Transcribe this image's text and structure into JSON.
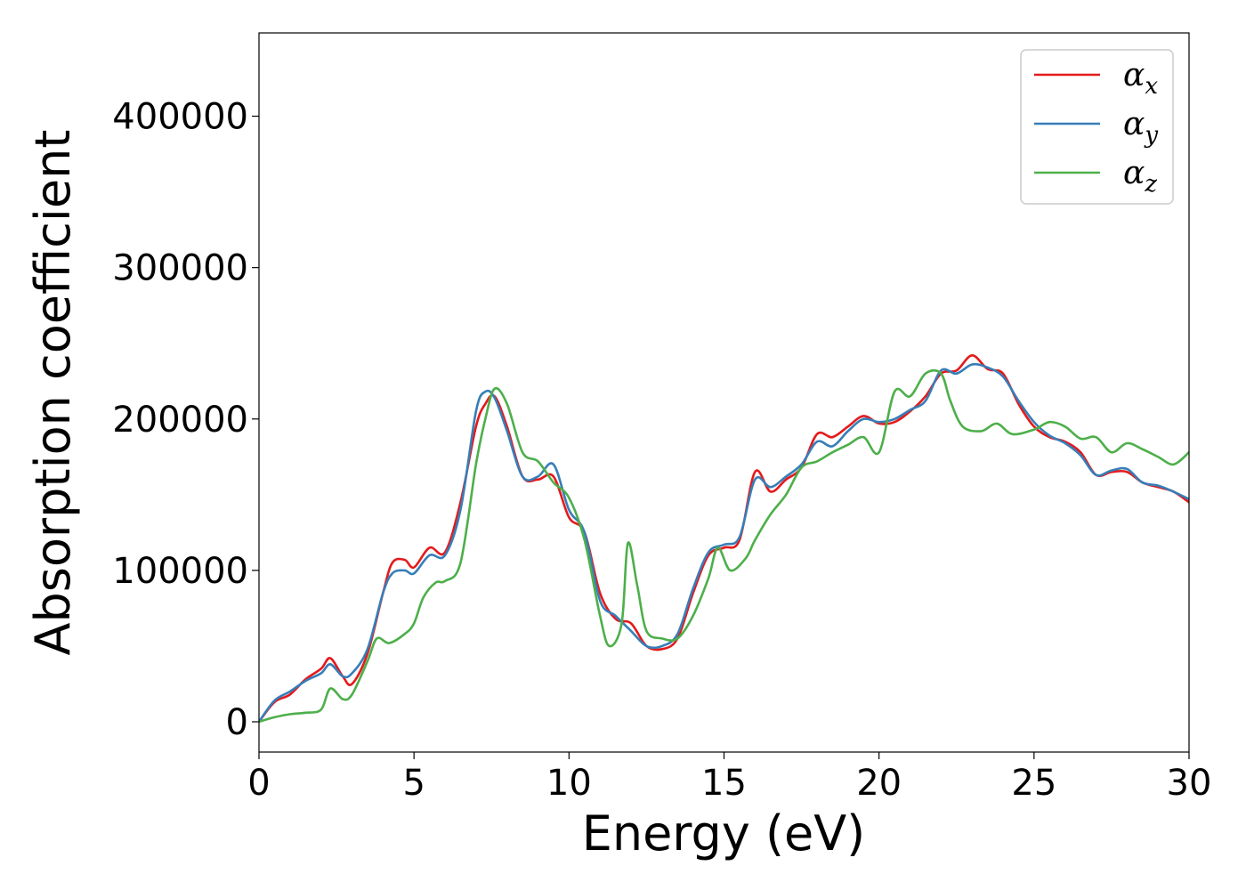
{
  "chart_data": {
    "type": "line",
    "title": "",
    "xlabel": "Energy (eV)",
    "ylabel": "Absorption coefficient",
    "xlim": [
      0,
      30
    ],
    "ylim": [
      -20000,
      455000
    ],
    "xticks": [
      0,
      5,
      10,
      15,
      20,
      25,
      30
    ],
    "xtick_labels": [
      "0",
      "5",
      "10",
      "15",
      "20",
      "25",
      "30"
    ],
    "yticks": [
      0,
      100000,
      200000,
      300000,
      400000
    ],
    "ytick_labels": [
      "0",
      "100000",
      "200000",
      "300000",
      "400000"
    ],
    "grid": false,
    "legend_position": "top-right",
    "series": [
      {
        "name": "α",
        "subscript": "x",
        "color": "#e41a1c",
        "points": [
          [
            0,
            0
          ],
          [
            0.5,
            13000
          ],
          [
            1,
            18000
          ],
          [
            1.5,
            28000
          ],
          [
            2,
            35000
          ],
          [
            2.3,
            42000
          ],
          [
            2.7,
            30000
          ],
          [
            3,
            25000
          ],
          [
            3.5,
            45000
          ],
          [
            4,
            85000
          ],
          [
            4.3,
            105000
          ],
          [
            4.7,
            107000
          ],
          [
            5,
            102000
          ],
          [
            5.5,
            115000
          ],
          [
            6,
            112000
          ],
          [
            6.5,
            145000
          ],
          [
            7,
            195000
          ],
          [
            7.3,
            210000
          ],
          [
            7.6,
            215000
          ],
          [
            8,
            195000
          ],
          [
            8.5,
            162000
          ],
          [
            9,
            160000
          ],
          [
            9.5,
            162000
          ],
          [
            10,
            135000
          ],
          [
            10.5,
            125000
          ],
          [
            11,
            85000
          ],
          [
            11.5,
            68000
          ],
          [
            12,
            65000
          ],
          [
            12.5,
            50000
          ],
          [
            13,
            48000
          ],
          [
            13.5,
            55000
          ],
          [
            14,
            85000
          ],
          [
            14.5,
            110000
          ],
          [
            15,
            115000
          ],
          [
            15.5,
            120000
          ],
          [
            16,
            165000
          ],
          [
            16.5,
            152000
          ],
          [
            17,
            160000
          ],
          [
            17.5,
            168000
          ],
          [
            18,
            190000
          ],
          [
            18.5,
            188000
          ],
          [
            19,
            195000
          ],
          [
            19.5,
            202000
          ],
          [
            20,
            197000
          ],
          [
            20.5,
            198000
          ],
          [
            21,
            205000
          ],
          [
            21.5,
            215000
          ],
          [
            22,
            230000
          ],
          [
            22.5,
            232000
          ],
          [
            23,
            242000
          ],
          [
            23.5,
            233000
          ],
          [
            24,
            230000
          ],
          [
            24.5,
            210000
          ],
          [
            25,
            195000
          ],
          [
            25.5,
            188000
          ],
          [
            26,
            185000
          ],
          [
            26.5,
            178000
          ],
          [
            27,
            163000
          ],
          [
            27.5,
            165000
          ],
          [
            28,
            165000
          ],
          [
            28.5,
            158000
          ],
          [
            29,
            155000
          ],
          [
            29.5,
            152000
          ],
          [
            30,
            145000
          ]
        ]
      },
      {
        "name": "α",
        "subscript": "y",
        "color": "#377eb8",
        "points": [
          [
            0,
            0
          ],
          [
            0.5,
            14000
          ],
          [
            1,
            20000
          ],
          [
            1.5,
            27000
          ],
          [
            2,
            32000
          ],
          [
            2.3,
            38000
          ],
          [
            2.7,
            30000
          ],
          [
            3,
            32000
          ],
          [
            3.5,
            48000
          ],
          [
            4,
            85000
          ],
          [
            4.3,
            98000
          ],
          [
            4.7,
            100000
          ],
          [
            5,
            98000
          ],
          [
            5.5,
            110000
          ],
          [
            6,
            110000
          ],
          [
            6.5,
            140000
          ],
          [
            7,
            205000
          ],
          [
            7.3,
            218000
          ],
          [
            7.6,
            214000
          ],
          [
            8,
            192000
          ],
          [
            8.5,
            162000
          ],
          [
            9,
            162000
          ],
          [
            9.5,
            170000
          ],
          [
            10,
            140000
          ],
          [
            10.5,
            125000
          ],
          [
            11,
            80000
          ],
          [
            11.5,
            70000
          ],
          [
            12,
            60000
          ],
          [
            12.5,
            50000
          ],
          [
            13,
            50000
          ],
          [
            13.5,
            58000
          ],
          [
            14,
            88000
          ],
          [
            14.5,
            112000
          ],
          [
            15,
            117000
          ],
          [
            15.5,
            122000
          ],
          [
            16,
            160000
          ],
          [
            16.5,
            155000
          ],
          [
            17,
            162000
          ],
          [
            17.5,
            170000
          ],
          [
            18,
            185000
          ],
          [
            18.5,
            182000
          ],
          [
            19,
            192000
          ],
          [
            19.5,
            200000
          ],
          [
            20,
            198000
          ],
          [
            20.5,
            200000
          ],
          [
            21,
            206000
          ],
          [
            21.5,
            212000
          ],
          [
            22,
            232000
          ],
          [
            22.5,
            230000
          ],
          [
            23,
            236000
          ],
          [
            23.5,
            234000
          ],
          [
            24,
            228000
          ],
          [
            24.5,
            212000
          ],
          [
            25,
            198000
          ],
          [
            25.5,
            189000
          ],
          [
            26,
            184000
          ],
          [
            26.5,
            176000
          ],
          [
            27,
            163000
          ],
          [
            27.5,
            166000
          ],
          [
            28,
            167000
          ],
          [
            28.5,
            158000
          ],
          [
            29,
            156000
          ],
          [
            29.5,
            152000
          ],
          [
            30,
            147000
          ]
        ]
      },
      {
        "name": "α",
        "subscript": "z",
        "color": "#4daf4a",
        "points": [
          [
            0,
            0
          ],
          [
            0.5,
            3000
          ],
          [
            1,
            5000
          ],
          [
            1.5,
            6000
          ],
          [
            2,
            8000
          ],
          [
            2.3,
            22000
          ],
          [
            2.7,
            15000
          ],
          [
            3,
            18000
          ],
          [
            3.5,
            40000
          ],
          [
            3.8,
            55000
          ],
          [
            4.2,
            52000
          ],
          [
            4.7,
            58000
          ],
          [
            5,
            65000
          ],
          [
            5.3,
            82000
          ],
          [
            5.7,
            92000
          ],
          [
            6,
            93000
          ],
          [
            6.5,
            105000
          ],
          [
            7,
            170000
          ],
          [
            7.3,
            200000
          ],
          [
            7.6,
            220000
          ],
          [
            8,
            210000
          ],
          [
            8.5,
            178000
          ],
          [
            9,
            172000
          ],
          [
            9.5,
            158000
          ],
          [
            10,
            148000
          ],
          [
            10.5,
            120000
          ],
          [
            11,
            70000
          ],
          [
            11.3,
            50000
          ],
          [
            11.7,
            65000
          ],
          [
            11.9,
            118000
          ],
          [
            12.2,
            90000
          ],
          [
            12.5,
            60000
          ],
          [
            13,
            55000
          ],
          [
            13.5,
            55000
          ],
          [
            14,
            70000
          ],
          [
            14.5,
            95000
          ],
          [
            14.8,
            115000
          ],
          [
            15.2,
            100000
          ],
          [
            15.7,
            108000
          ],
          [
            16,
            120000
          ],
          [
            16.5,
            137000
          ],
          [
            17,
            150000
          ],
          [
            17.5,
            168000
          ],
          [
            18,
            172000
          ],
          [
            18.5,
            178000
          ],
          [
            19,
            183000
          ],
          [
            19.5,
            188000
          ],
          [
            20,
            178000
          ],
          [
            20.5,
            218000
          ],
          [
            21,
            215000
          ],
          [
            21.5,
            230000
          ],
          [
            22,
            230000
          ],
          [
            22.3,
            212000
          ],
          [
            22.7,
            195000
          ],
          [
            23.3,
            192000
          ],
          [
            23.8,
            197000
          ],
          [
            24.3,
            190000
          ],
          [
            25,
            193000
          ],
          [
            25.5,
            198000
          ],
          [
            26,
            195000
          ],
          [
            26.5,
            187000
          ],
          [
            27,
            188000
          ],
          [
            27.5,
            178000
          ],
          [
            28,
            184000
          ],
          [
            28.5,
            180000
          ],
          [
            29,
            175000
          ],
          [
            29.5,
            170000
          ],
          [
            30,
            178000
          ]
        ]
      }
    ]
  },
  "colors": {
    "background": "#ffffff",
    "axis": "#000000",
    "legend_border": "#cccccc"
  }
}
